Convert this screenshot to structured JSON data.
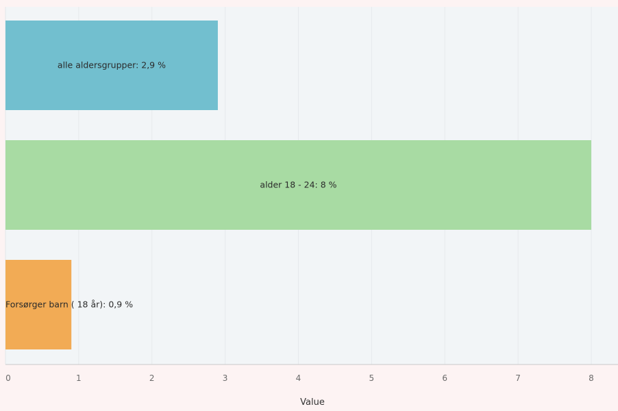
{
  "colors": {
    "page_background": "#fdf3f3",
    "plot_background": "#f2f5f7",
    "grid": "#e6e9ec",
    "axis": "#c9c9c9"
  },
  "chart_data": {
    "type": "bar",
    "orientation": "horizontal",
    "categories": [
      "alle aldersgrupper",
      "alder 18 - 24",
      "Forsørger barn ( 18 år)"
    ],
    "values": [
      2.9,
      8,
      0.9
    ],
    "data_labels": [
      "alle aldersgrupper: 2,9 %",
      "alder 18 - 24: 8 %",
      "Forsørger barn ( 18 år): 0,9 %"
    ],
    "bar_colors": [
      "#72bfcf",
      "#a8dba3",
      "#f2ab55"
    ],
    "xlabel": "Value",
    "xlim": [
      0,
      8.4
    ],
    "xticks": [
      0,
      1,
      2,
      3,
      4,
      5,
      6,
      7,
      8
    ],
    "xtick_labels": [
      "0",
      "1",
      "2",
      "3",
      "4",
      "5",
      "6",
      "7",
      "8"
    ],
    "grid": true,
    "legend": "none"
  }
}
